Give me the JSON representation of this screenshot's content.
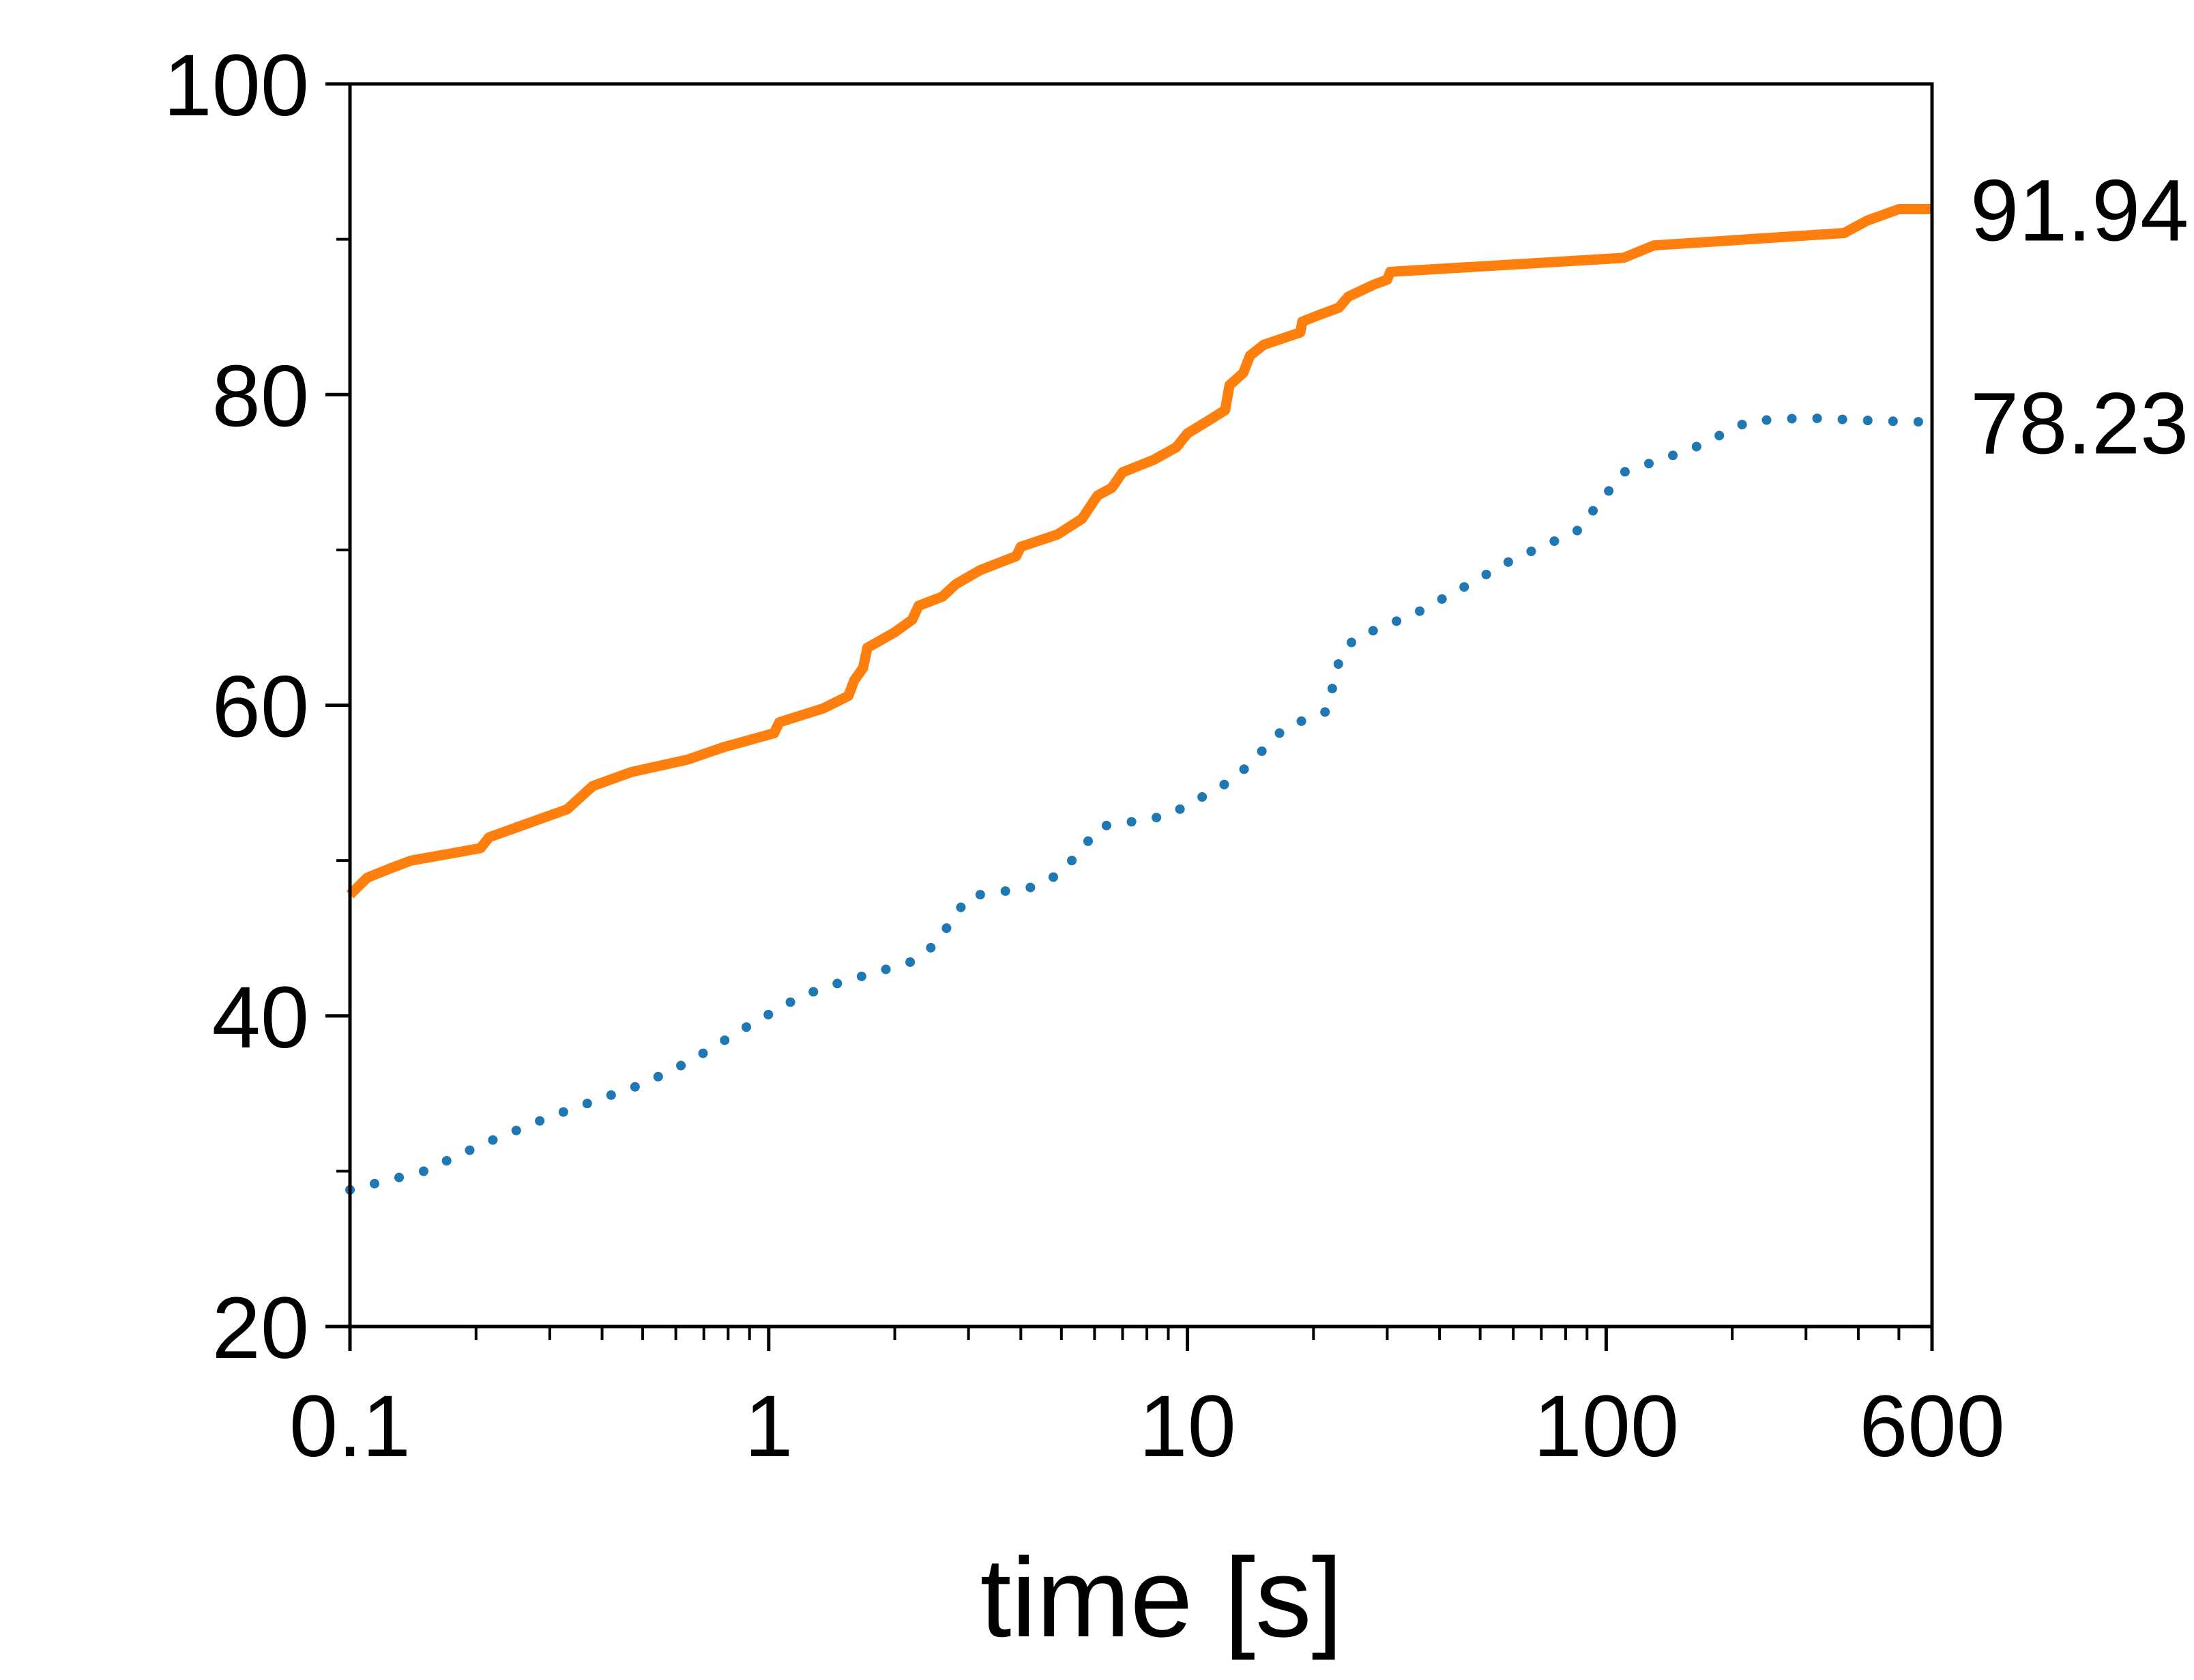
{
  "chart_data": {
    "type": "line",
    "title": "",
    "xlabel": "time [s]",
    "ylabel": "",
    "x_scale": "log",
    "xlim": [
      0.1,
      600
    ],
    "ylim": [
      20,
      100
    ],
    "grid": false,
    "legend": "none",
    "x_ticks": [
      {
        "value": 0.1,
        "label": "0.1"
      },
      {
        "value": 1,
        "label": "1"
      },
      {
        "value": 10,
        "label": "10"
      },
      {
        "value": 100,
        "label": "100"
      },
      {
        "value": 600,
        "label": "600"
      }
    ],
    "y_ticks": [
      {
        "value": 20,
        "label": "20"
      },
      {
        "value": 40,
        "label": "40"
      },
      {
        "value": 60,
        "label": "60"
      },
      {
        "value": 80,
        "label": "80"
      },
      {
        "value": 100,
        "label": "100"
      }
    ],
    "series": [
      {
        "style": "solid",
        "color": "#FF7F0E",
        "end_label": "91.94",
        "points": [
          [
            0.1,
            47.8
          ],
          [
            0.11,
            48.9
          ],
          [
            0.125,
            49.5
          ],
          [
            0.14,
            50.0
          ],
          [
            0.17,
            50.4
          ],
          [
            0.205,
            50.8
          ],
          [
            0.215,
            51.5
          ],
          [
            0.26,
            52.3
          ],
          [
            0.33,
            53.3
          ],
          [
            0.38,
            54.8
          ],
          [
            0.47,
            55.7
          ],
          [
            0.64,
            56.5
          ],
          [
            0.78,
            57.3
          ],
          [
            1.03,
            58.2
          ],
          [
            1.06,
            58.9
          ],
          [
            1.35,
            59.8
          ],
          [
            1.55,
            60.6
          ],
          [
            1.6,
            61.6
          ],
          [
            1.68,
            62.4
          ],
          [
            1.72,
            63.7
          ],
          [
            2.0,
            64.7
          ],
          [
            2.2,
            65.5
          ],
          [
            2.28,
            66.4
          ],
          [
            2.6,
            67.0
          ],
          [
            2.8,
            67.8
          ],
          [
            3.2,
            68.7
          ],
          [
            3.9,
            69.6
          ],
          [
            4.0,
            70.2
          ],
          [
            4.9,
            71.0
          ],
          [
            5.6,
            72.0
          ],
          [
            6.1,
            73.5
          ],
          [
            6.6,
            74.0
          ],
          [
            7.0,
            75.0
          ],
          [
            8.3,
            75.8
          ],
          [
            9.4,
            76.6
          ],
          [
            10.0,
            77.5
          ],
          [
            11.5,
            78.5
          ],
          [
            12.3,
            79.0
          ],
          [
            12.6,
            80.6
          ],
          [
            13.6,
            81.4
          ],
          [
            14.1,
            82.5
          ],
          [
            15.2,
            83.2
          ],
          [
            16.8,
            83.6
          ],
          [
            18.6,
            84.0
          ],
          [
            18.8,
            84.7
          ],
          [
            20.5,
            85.1
          ],
          [
            23.0,
            85.6
          ],
          [
            24.2,
            86.3
          ],
          [
            28.0,
            87.1
          ],
          [
            30.0,
            87.4
          ],
          [
            30.5,
            87.9
          ],
          [
            110.0,
            88.8
          ],
          [
            130.0,
            89.6
          ],
          [
            370.0,
            90.4
          ],
          [
            420.0,
            91.2
          ],
          [
            500.0,
            91.94
          ],
          [
            600.0,
            91.94
          ]
        ]
      },
      {
        "style": "dotted",
        "color": "#1F77B4",
        "end_label": "78.23",
        "points": [
          [
            0.1,
            28.8
          ],
          [
            0.15,
            30.0
          ],
          [
            0.21,
            31.8
          ],
          [
            0.3,
            33.5
          ],
          [
            0.4,
            34.7
          ],
          [
            0.5,
            35.6
          ],
          [
            0.65,
            37.1
          ],
          [
            0.9,
            39.4
          ],
          [
            1.2,
            41.3
          ],
          [
            1.5,
            42.2
          ],
          [
            1.8,
            42.8
          ],
          [
            2.2,
            43.5
          ],
          [
            2.5,
            44.6
          ],
          [
            3.0,
            47.7
          ],
          [
            3.6,
            48.0
          ],
          [
            4.3,
            48.3
          ],
          [
            5.0,
            49.2
          ],
          [
            6.2,
            52.2
          ],
          [
            7.0,
            52.4
          ],
          [
            9.0,
            52.9
          ],
          [
            11.2,
            54.3
          ],
          [
            13.0,
            55.3
          ],
          [
            15.0,
            57.0
          ],
          [
            17.0,
            58.5
          ],
          [
            20.0,
            59.3
          ],
          [
            21.5,
            59.6
          ],
          [
            23.0,
            62.8
          ],
          [
            25.0,
            64.3
          ],
          [
            35.0,
            65.9
          ],
          [
            45.0,
            67.5
          ],
          [
            60.0,
            69.4
          ],
          [
            85.0,
            71.2
          ],
          [
            110.0,
            75.0
          ],
          [
            160.0,
            76.5
          ],
          [
            220.0,
            78.3
          ],
          [
            300.0,
            78.5
          ],
          [
            450.0,
            78.3
          ],
          [
            600.0,
            78.23
          ]
        ]
      }
    ]
  }
}
